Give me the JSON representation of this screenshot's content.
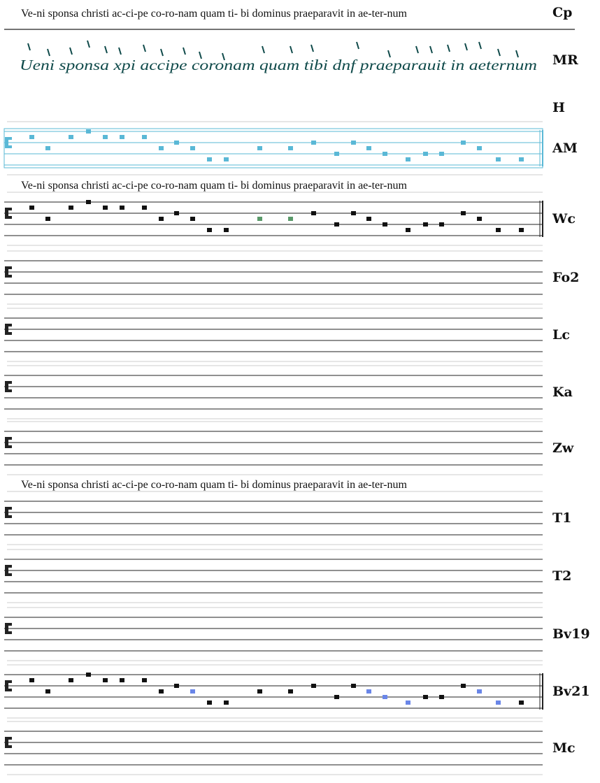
{
  "header": {
    "lyrics": "Ve-ni sponsa christi ac-ci-pe co-ro-nam quam  ti- bi  dominus praeparavit in ae-ter-num",
    "label": "Cp"
  },
  "manuscript": {
    "text": "Ueni sponsa xpi accipe coronam quam tibi   dnf praeparauit in aeternum",
    "label": "MR"
  },
  "rows": [
    {
      "label": "H"
    },
    {
      "label": "AM"
    },
    {
      "label": "Wc"
    },
    {
      "label": "Fo2"
    },
    {
      "label": "Lc"
    },
    {
      "label": "Ka"
    },
    {
      "label": "Zw"
    },
    {
      "label": "T1"
    },
    {
      "label": "T2"
    },
    {
      "label": "Bv19"
    },
    {
      "label": "Bv21"
    },
    {
      "label": "Mc"
    }
  ],
  "lyrics": [
    "Ve-ni sponsa christi ac-ci-pe co-ro-nam quam  ti- bi  dominus praeparavit in ae-ter-num",
    "Ve-ni sponsa christi ac-ci-pe co-ro-nam quam  ti- bi  dominus praeparavit  in ae-ter-num"
  ]
}
